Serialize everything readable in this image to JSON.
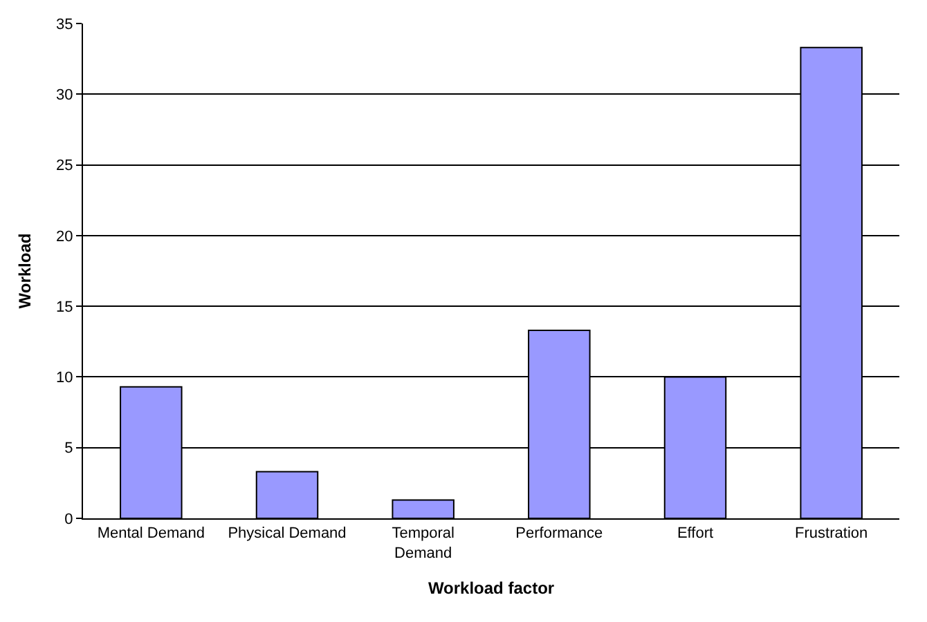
{
  "chart_data": {
    "type": "bar",
    "xlabel": "Workload factor",
    "ylabel": "Workload",
    "categories": [
      "Mental Demand",
      "Physical Demand",
      "Temporal\nDemand",
      "Performance",
      "Effort",
      "Frustration"
    ],
    "values": [
      9.3,
      3.3,
      1.3,
      13.3,
      10,
      33.3
    ],
    "color": "#9999ff",
    "ylim": [
      0,
      35
    ],
    "yticks": [
      0,
      5,
      10,
      15,
      20,
      25,
      30,
      35
    ],
    "grid": "y"
  }
}
